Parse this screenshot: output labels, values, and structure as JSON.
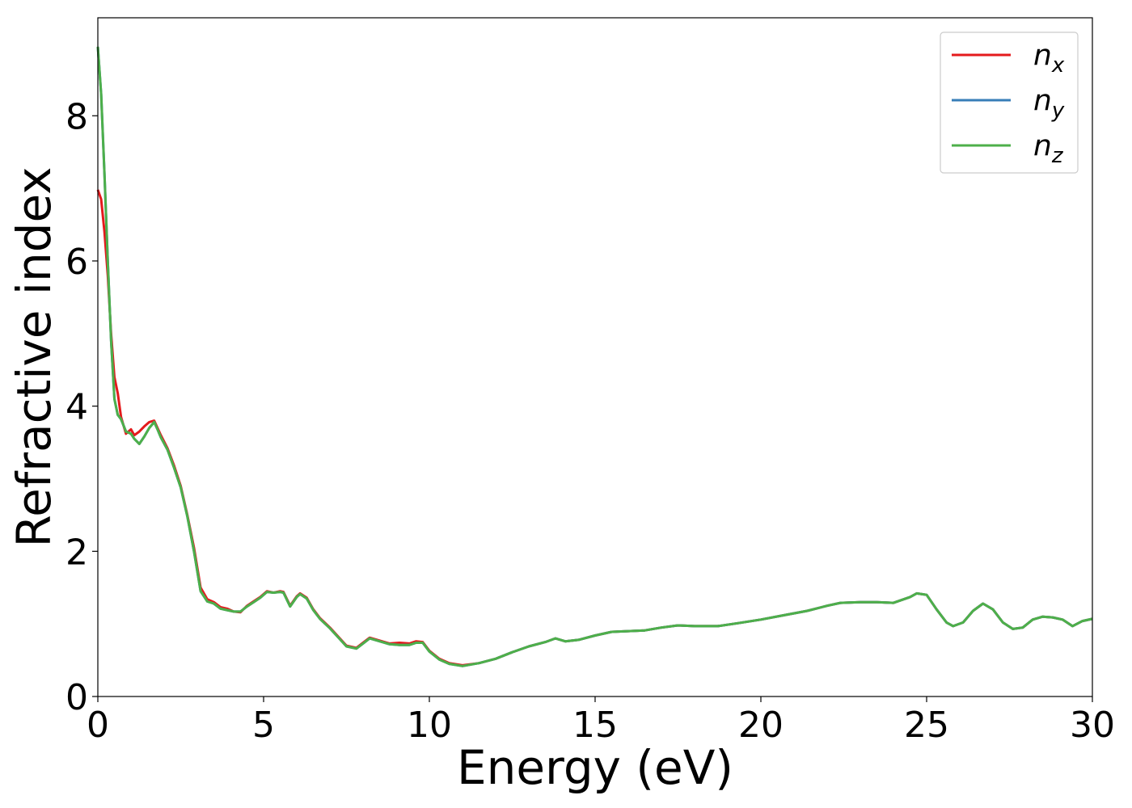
{
  "chart_data": {
    "type": "line",
    "xlabel": "Energy (eV)",
    "ylabel": "Refractive index",
    "xlim": [
      0,
      30
    ],
    "ylim": [
      0,
      9.35
    ],
    "xticks": [
      0,
      5,
      10,
      15,
      20,
      25,
      30
    ],
    "yticks": [
      0,
      2,
      4,
      6,
      8
    ],
    "grid": false,
    "legend_position": "top-right",
    "series": [
      {
        "name": "n_x",
        "legend_base": "n",
        "legend_sub": "x",
        "color": "#e41a1c",
        "x": [
          0,
          0.1,
          0.2,
          0.3,
          0.4,
          0.5,
          0.6,
          0.7,
          0.85,
          1.0,
          1.1,
          1.25,
          1.4,
          1.55,
          1.7,
          1.8,
          1.9,
          2.1,
          2.3,
          2.5,
          2.7,
          2.9,
          3.1,
          3.3,
          3.5,
          3.7,
          3.9,
          4.1,
          4.3,
          4.5,
          4.7,
          4.9,
          5.1,
          5.3,
          5.5,
          5.6,
          5.8,
          6.0,
          6.1,
          6.3,
          6.5,
          6.7,
          7.0,
          7.3,
          7.5,
          7.8,
          8.0,
          8.2,
          8.5,
          8.8,
          9.1,
          9.4,
          9.6,
          9.8,
          10.0,
          10.3,
          10.6,
          11.0,
          11.5,
          12.0,
          12.5,
          13.0,
          13.5,
          13.8,
          14.1,
          14.5,
          15.0,
          15.5,
          16.0,
          16.5,
          17.0,
          17.5,
          18.0,
          18.7,
          19.3,
          20.0,
          20.7,
          21.4,
          22.0,
          22.4,
          23.0,
          23.5,
          24.0,
          24.5,
          24.7,
          25.0,
          25.3,
          25.6,
          25.8,
          26.1,
          26.4,
          26.7,
          27.0,
          27.3,
          27.6,
          27.9,
          28.2,
          28.5,
          28.8,
          29.1,
          29.4,
          29.7,
          30.0
        ],
        "y": [
          6.98,
          6.85,
          6.4,
          5.8,
          5.0,
          4.4,
          4.18,
          3.85,
          3.62,
          3.68,
          3.6,
          3.65,
          3.72,
          3.78,
          3.8,
          3.7,
          3.6,
          3.42,
          3.18,
          2.9,
          2.5,
          2.05,
          1.5,
          1.34,
          1.3,
          1.23,
          1.21,
          1.17,
          1.16,
          1.25,
          1.31,
          1.37,
          1.45,
          1.43,
          1.45,
          1.44,
          1.25,
          1.38,
          1.42,
          1.36,
          1.2,
          1.08,
          0.95,
          0.8,
          0.7,
          0.67,
          0.74,
          0.81,
          0.77,
          0.73,
          0.74,
          0.73,
          0.76,
          0.75,
          0.63,
          0.52,
          0.46,
          0.43,
          0.46,
          0.52,
          0.61,
          0.69,
          0.75,
          0.8,
          0.76,
          0.78,
          0.84,
          0.89,
          0.9,
          0.91,
          0.95,
          0.98,
          0.97,
          0.97,
          1.01,
          1.06,
          1.12,
          1.18,
          1.25,
          1.29,
          1.3,
          1.3,
          1.29,
          1.37,
          1.42,
          1.4,
          1.2,
          1.02,
          0.97,
          1.02,
          1.18,
          1.28,
          1.2,
          1.02,
          0.93,
          0.95,
          1.06,
          1.1,
          1.09,
          1.06,
          0.97,
          1.04,
          1.07
        ]
      },
      {
        "name": "n_y",
        "legend_base": "n",
        "legend_sub": "y",
        "color": "#377eb8",
        "x": [
          0,
          0.1,
          0.2,
          0.3,
          0.4,
          0.5,
          0.6,
          0.7,
          0.85,
          1.0,
          1.1,
          1.25,
          1.4,
          1.55,
          1.7,
          1.8,
          1.9,
          2.1,
          2.3,
          2.5,
          2.7,
          2.9,
          3.1,
          3.3,
          3.5,
          3.7,
          3.9,
          4.1,
          4.3,
          4.5,
          4.7,
          4.9,
          5.1,
          5.3,
          5.5,
          5.6,
          5.8,
          6.0,
          6.1,
          6.3,
          6.5,
          6.7,
          7.0,
          7.3,
          7.5,
          7.8,
          8.0,
          8.2,
          8.5,
          8.8,
          9.1,
          9.4,
          9.6,
          9.8,
          10.0,
          10.3,
          10.6,
          11.0,
          11.5,
          12.0,
          12.5,
          13.0,
          13.5,
          13.8,
          14.1,
          14.5,
          15.0,
          15.5,
          16.0,
          16.5,
          17.0,
          17.5,
          18.0,
          18.7,
          19.3,
          20.0,
          20.7,
          21.4,
          22.0,
          22.4,
          23.0,
          23.5,
          24.0,
          24.5,
          24.7,
          25.0,
          25.3,
          25.6,
          25.8,
          26.1,
          26.4,
          26.7,
          27.0,
          27.3,
          27.6,
          27.9,
          28.2,
          28.5,
          28.8,
          29.1,
          29.4,
          29.7,
          30.0
        ],
        "y": [
          8.95,
          8.3,
          7.2,
          6.0,
          4.9,
          4.1,
          3.88,
          3.82,
          3.65,
          3.62,
          3.55,
          3.48,
          3.58,
          3.7,
          3.78,
          3.68,
          3.57,
          3.4,
          3.15,
          2.88,
          2.48,
          2.0,
          1.45,
          1.31,
          1.28,
          1.21,
          1.19,
          1.17,
          1.17,
          1.24,
          1.3,
          1.36,
          1.44,
          1.43,
          1.44,
          1.43,
          1.24,
          1.37,
          1.41,
          1.35,
          1.19,
          1.07,
          0.94,
          0.79,
          0.69,
          0.66,
          0.73,
          0.8,
          0.76,
          0.72,
          0.71,
          0.71,
          0.74,
          0.74,
          0.62,
          0.51,
          0.45,
          0.42,
          0.46,
          0.52,
          0.61,
          0.69,
          0.75,
          0.8,
          0.76,
          0.78,
          0.84,
          0.89,
          0.9,
          0.91,
          0.95,
          0.98,
          0.97,
          0.97,
          1.01,
          1.06,
          1.12,
          1.18,
          1.25,
          1.29,
          1.3,
          1.3,
          1.29,
          1.37,
          1.42,
          1.4,
          1.2,
          1.02,
          0.97,
          1.02,
          1.18,
          1.28,
          1.2,
          1.02,
          0.93,
          0.95,
          1.06,
          1.1,
          1.09,
          1.06,
          0.97,
          1.04,
          1.07
        ]
      },
      {
        "name": "n_z",
        "legend_base": "n",
        "legend_sub": "z",
        "color": "#4daf4a",
        "x": [
          0,
          0.1,
          0.2,
          0.3,
          0.4,
          0.5,
          0.6,
          0.7,
          0.85,
          1.0,
          1.1,
          1.25,
          1.4,
          1.55,
          1.7,
          1.8,
          1.9,
          2.1,
          2.3,
          2.5,
          2.7,
          2.9,
          3.1,
          3.3,
          3.5,
          3.7,
          3.9,
          4.1,
          4.3,
          4.5,
          4.7,
          4.9,
          5.1,
          5.3,
          5.5,
          5.6,
          5.8,
          6.0,
          6.1,
          6.3,
          6.5,
          6.7,
          7.0,
          7.3,
          7.5,
          7.8,
          8.0,
          8.2,
          8.5,
          8.8,
          9.1,
          9.4,
          9.6,
          9.8,
          10.0,
          10.3,
          10.6,
          11.0,
          11.5,
          12.0,
          12.5,
          13.0,
          13.5,
          13.8,
          14.1,
          14.5,
          15.0,
          15.5,
          16.0,
          16.5,
          17.0,
          17.5,
          18.0,
          18.7,
          19.3,
          20.0,
          20.7,
          21.4,
          22.0,
          22.4,
          23.0,
          23.5,
          24.0,
          24.5,
          24.7,
          25.0,
          25.3,
          25.6,
          25.8,
          26.1,
          26.4,
          26.7,
          27.0,
          27.3,
          27.6,
          27.9,
          28.2,
          28.5,
          28.8,
          29.1,
          29.4,
          29.7,
          30.0
        ],
        "y": [
          8.95,
          8.3,
          7.2,
          6.0,
          4.9,
          4.1,
          3.88,
          3.82,
          3.65,
          3.62,
          3.55,
          3.48,
          3.58,
          3.7,
          3.78,
          3.68,
          3.57,
          3.4,
          3.15,
          2.88,
          2.48,
          2.0,
          1.45,
          1.31,
          1.28,
          1.21,
          1.19,
          1.17,
          1.17,
          1.24,
          1.3,
          1.36,
          1.44,
          1.43,
          1.44,
          1.43,
          1.24,
          1.37,
          1.41,
          1.35,
          1.19,
          1.07,
          0.94,
          0.79,
          0.69,
          0.66,
          0.73,
          0.8,
          0.76,
          0.72,
          0.71,
          0.71,
          0.74,
          0.74,
          0.62,
          0.51,
          0.45,
          0.42,
          0.46,
          0.52,
          0.61,
          0.69,
          0.75,
          0.8,
          0.76,
          0.78,
          0.84,
          0.89,
          0.9,
          0.91,
          0.95,
          0.98,
          0.97,
          0.97,
          1.01,
          1.06,
          1.12,
          1.18,
          1.25,
          1.29,
          1.3,
          1.3,
          1.29,
          1.37,
          1.42,
          1.4,
          1.2,
          1.02,
          0.97,
          1.02,
          1.18,
          1.28,
          1.2,
          1.02,
          0.93,
          0.95,
          1.06,
          1.1,
          1.09,
          1.06,
          0.97,
          1.04,
          1.07
        ]
      }
    ]
  }
}
